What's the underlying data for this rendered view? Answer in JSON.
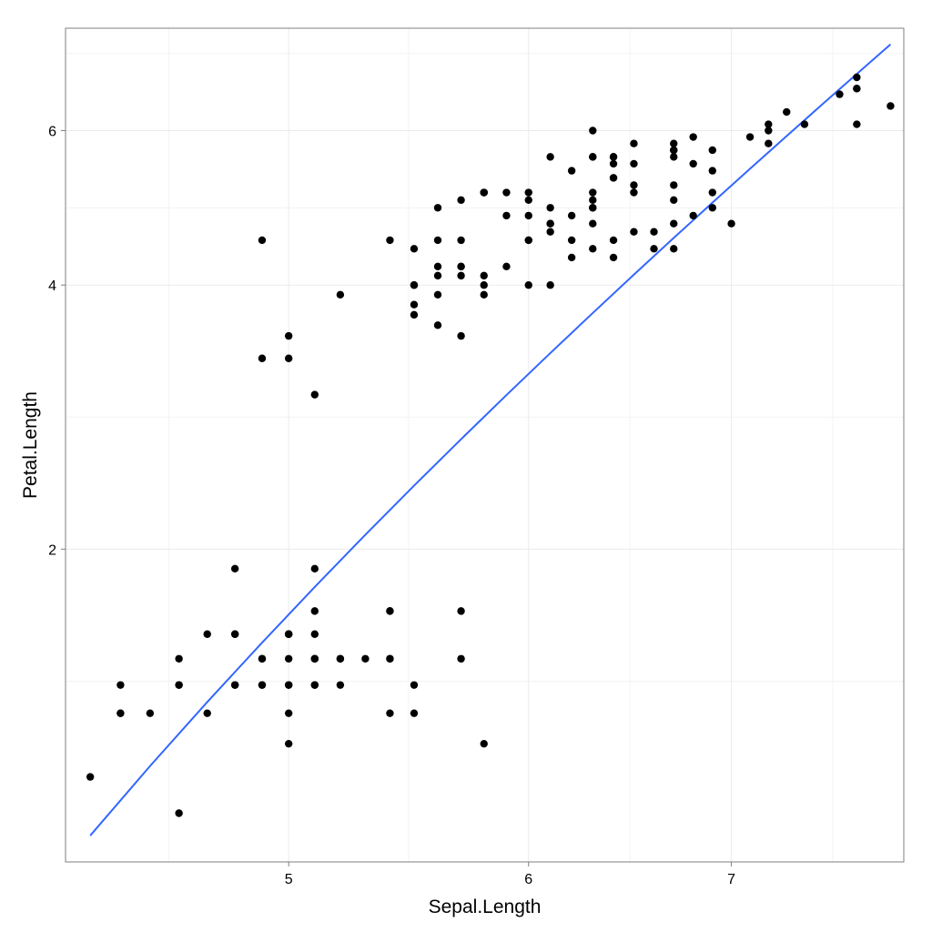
{
  "chart_data": {
    "type": "scatter",
    "title": "",
    "xlabel": "Sepal.Length",
    "ylabel": "Petal.Length",
    "x_scale": "log",
    "y_scale": "log",
    "xlim": [
      4.22,
      7.98
    ],
    "ylim": [
      0.88,
      7.85
    ],
    "x_ticks": [
      5,
      6,
      7
    ],
    "y_ticks": [
      2,
      4,
      6
    ],
    "grid": true,
    "legend": "none",
    "colors": {
      "points": "#000000",
      "fit_line": "#3366FF",
      "grid": "#EBEBEB",
      "panel_border": "#7F7F7F"
    },
    "points": [
      [
        5.1,
        1.4
      ],
      [
        4.9,
        1.4
      ],
      [
        4.7,
        1.3
      ],
      [
        4.6,
        1.5
      ],
      [
        5.0,
        1.4
      ],
      [
        5.4,
        1.7
      ],
      [
        4.6,
        1.4
      ],
      [
        5.0,
        1.5
      ],
      [
        4.4,
        1.4
      ],
      [
        4.9,
        1.5
      ],
      [
        5.4,
        1.5
      ],
      [
        4.8,
        1.6
      ],
      [
        4.8,
        1.4
      ],
      [
        4.3,
        1.1
      ],
      [
        5.8,
        1.2
      ],
      [
        5.7,
        1.5
      ],
      [
        5.4,
        1.3
      ],
      [
        5.1,
        1.4
      ],
      [
        5.7,
        1.7
      ],
      [
        5.1,
        1.5
      ],
      [
        5.4,
        1.7
      ],
      [
        5.1,
        1.5
      ],
      [
        4.6,
        1.0
      ],
      [
        5.1,
        1.7
      ],
      [
        4.8,
        1.9
      ],
      [
        5.0,
        1.6
      ],
      [
        5.0,
        1.6
      ],
      [
        5.2,
        1.5
      ],
      [
        5.2,
        1.4
      ],
      [
        4.7,
        1.6
      ],
      [
        4.8,
        1.6
      ],
      [
        5.4,
        1.5
      ],
      [
        5.2,
        1.5
      ],
      [
        5.5,
        1.4
      ],
      [
        4.9,
        1.5
      ],
      [
        5.0,
        1.2
      ],
      [
        5.5,
        1.3
      ],
      [
        4.9,
        1.4
      ],
      [
        4.4,
        1.3
      ],
      [
        5.1,
        1.5
      ],
      [
        5.0,
        1.3
      ],
      [
        4.5,
        1.3
      ],
      [
        4.4,
        1.3
      ],
      [
        5.0,
        1.6
      ],
      [
        5.1,
        1.9
      ],
      [
        4.8,
        1.4
      ],
      [
        5.1,
        1.6
      ],
      [
        4.6,
        1.4
      ],
      [
        5.3,
        1.5
      ],
      [
        5.0,
        1.4
      ],
      [
        7.0,
        4.7
      ],
      [
        6.4,
        4.5
      ],
      [
        6.9,
        4.9
      ],
      [
        5.5,
        4.0
      ],
      [
        6.5,
        4.6
      ],
      [
        5.7,
        4.5
      ],
      [
        6.3,
        4.7
      ],
      [
        4.9,
        3.3
      ],
      [
        6.6,
        4.6
      ],
      [
        5.2,
        3.9
      ],
      [
        5.0,
        3.5
      ],
      [
        5.9,
        4.2
      ],
      [
        6.0,
        4.0
      ],
      [
        6.1,
        4.7
      ],
      [
        5.6,
        3.6
      ],
      [
        6.7,
        4.4
      ],
      [
        5.6,
        4.5
      ],
      [
        5.8,
        4.1
      ],
      [
        6.2,
        4.5
      ],
      [
        5.6,
        3.9
      ],
      [
        5.9,
        4.8
      ],
      [
        6.1,
        4.0
      ],
      [
        6.3,
        4.9
      ],
      [
        6.1,
        4.7
      ],
      [
        6.4,
        4.3
      ],
      [
        6.6,
        4.4
      ],
      [
        6.8,
        4.8
      ],
      [
        6.7,
        5.0
      ],
      [
        6.0,
        4.5
      ],
      [
        5.7,
        3.5
      ],
      [
        5.5,
        3.8
      ],
      [
        5.5,
        3.7
      ],
      [
        5.8,
        3.9
      ],
      [
        6.0,
        5.1
      ],
      [
        5.4,
        4.5
      ],
      [
        6.0,
        4.5
      ],
      [
        6.7,
        4.7
      ],
      [
        6.3,
        4.4
      ],
      [
        5.6,
        4.1
      ],
      [
        5.5,
        4.0
      ],
      [
        5.5,
        4.4
      ],
      [
        6.1,
        4.6
      ],
      [
        5.8,
        4.0
      ],
      [
        5.0,
        3.3
      ],
      [
        5.6,
        4.2
      ],
      [
        5.7,
        4.2
      ],
      [
        5.7,
        4.2
      ],
      [
        6.2,
        4.3
      ],
      [
        5.1,
        3.0
      ],
      [
        5.7,
        4.1
      ],
      [
        6.3,
        6.0
      ],
      [
        5.8,
        5.1
      ],
      [
        7.1,
        5.9
      ],
      [
        6.3,
        5.6
      ],
      [
        6.5,
        5.8
      ],
      [
        7.6,
        6.6
      ],
      [
        4.9,
        4.5
      ],
      [
        7.3,
        6.3
      ],
      [
        6.7,
        5.8
      ],
      [
        7.2,
        6.1
      ],
      [
        6.5,
        5.1
      ],
      [
        6.4,
        5.3
      ],
      [
        6.8,
        5.5
      ],
      [
        5.7,
        5.0
      ],
      [
        5.8,
        5.1
      ],
      [
        6.4,
        5.3
      ],
      [
        6.5,
        5.5
      ],
      [
        7.7,
        6.7
      ],
      [
        7.7,
        6.9
      ],
      [
        6.0,
        5.0
      ],
      [
        6.9,
        5.7
      ],
      [
        5.6,
        4.9
      ],
      [
        7.7,
        6.7
      ],
      [
        6.3,
        4.9
      ],
      [
        6.7,
        5.7
      ],
      [
        7.2,
        6.0
      ],
      [
        6.2,
        4.8
      ],
      [
        6.1,
        4.9
      ],
      [
        6.4,
        5.6
      ],
      [
        7.2,
        5.8
      ],
      [
        7.4,
        6.1
      ],
      [
        7.9,
        6.4
      ],
      [
        6.4,
        5.6
      ],
      [
        6.3,
        5.1
      ],
      [
        6.1,
        5.6
      ],
      [
        7.7,
        6.1
      ],
      [
        6.3,
        5.6
      ],
      [
        6.4,
        5.5
      ],
      [
        6.0,
        4.8
      ],
      [
        6.9,
        5.4
      ],
      [
        6.7,
        5.6
      ],
      [
        6.9,
        5.1
      ],
      [
        5.8,
        5.1
      ],
      [
        6.8,
        5.9
      ],
      [
        6.7,
        5.7
      ],
      [
        6.7,
        5.2
      ],
      [
        6.3,
        5.0
      ],
      [
        6.5,
        5.2
      ],
      [
        6.2,
        5.4
      ],
      [
        5.9,
        5.1
      ]
    ],
    "fit_line": [
      [
        4.3,
        0.943
      ],
      [
        4.5,
        1.132
      ],
      [
        4.7,
        1.339
      ],
      [
        4.9,
        1.565
      ],
      [
        5.1,
        1.811
      ],
      [
        5.3,
        2.077
      ],
      [
        5.5,
        2.363
      ],
      [
        5.7,
        2.669
      ],
      [
        5.9,
        2.997
      ],
      [
        6.1,
        3.346
      ],
      [
        6.3,
        3.717
      ],
      [
        6.5,
        4.111
      ],
      [
        6.7,
        4.527
      ],
      [
        6.9,
        4.966
      ],
      [
        7.1,
        5.429
      ],
      [
        7.3,
        5.915
      ],
      [
        7.5,
        6.426
      ],
      [
        7.7,
        6.962
      ],
      [
        7.9,
        7.523
      ]
    ]
  }
}
